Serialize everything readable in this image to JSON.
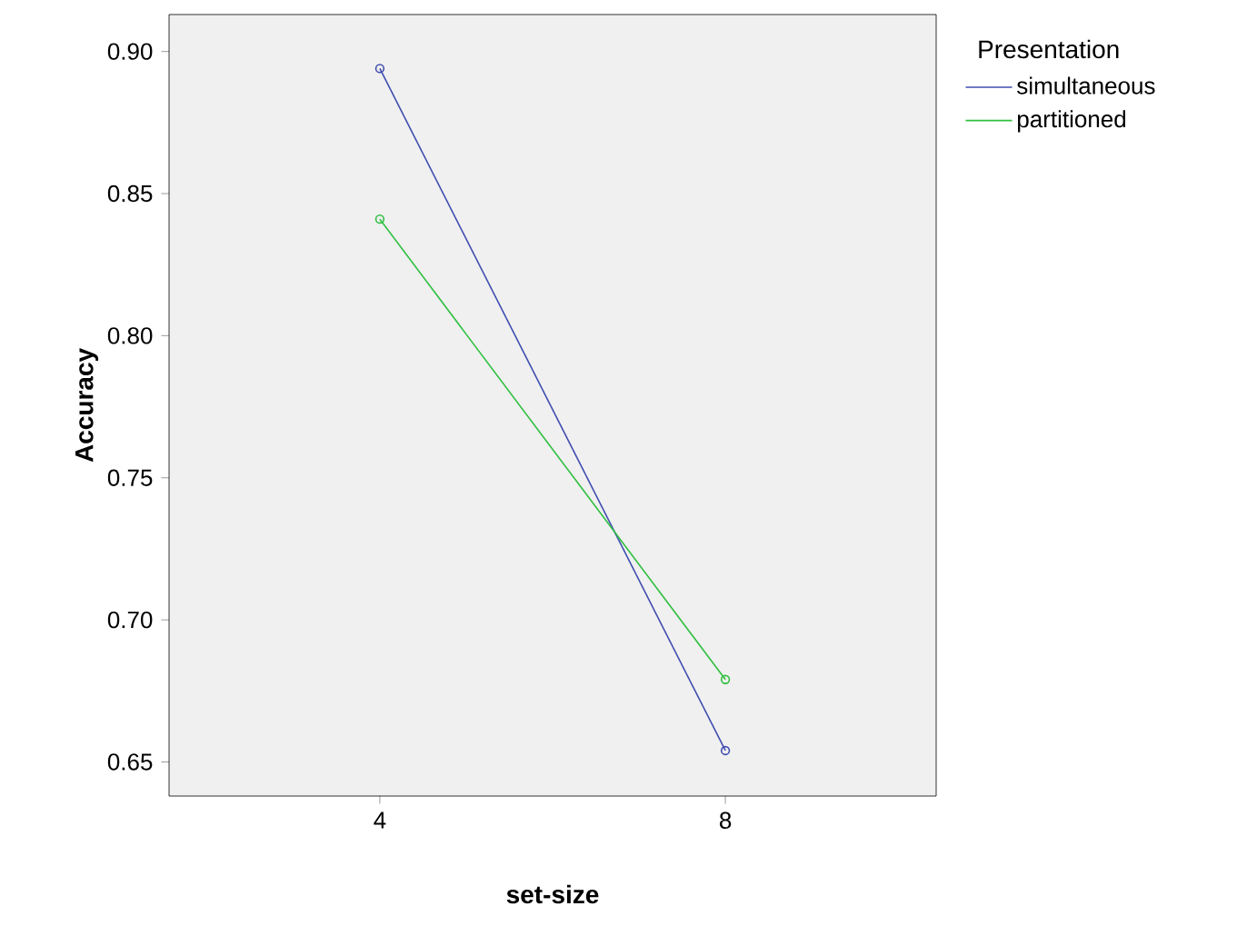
{
  "chart_data": {
    "type": "line",
    "xlabel": "set-size",
    "ylabel": "Accuracy",
    "legend_title": "Presentation",
    "categories": [
      "4",
      "8"
    ],
    "series": [
      {
        "name": "simultaneous",
        "color": "#3f4daf",
        "values": [
          0.894,
          0.654
        ]
      },
      {
        "name": "partitioned",
        "color": "#2fbf3f",
        "values": [
          0.841,
          0.679
        ]
      }
    ],
    "ylim": [
      0.638,
      0.913
    ],
    "yticks": [
      {
        "value": 0.65,
        "label": "0.65"
      },
      {
        "value": 0.7,
        "label": "0.70"
      },
      {
        "value": 0.75,
        "label": "0.75"
      },
      {
        "value": 0.8,
        "label": "0.80"
      },
      {
        "value": 0.85,
        "label": "0.85"
      },
      {
        "value": 0.9,
        "label": "0.90"
      }
    ],
    "legend": "right",
    "marker": "circle",
    "line_style": "solid"
  }
}
